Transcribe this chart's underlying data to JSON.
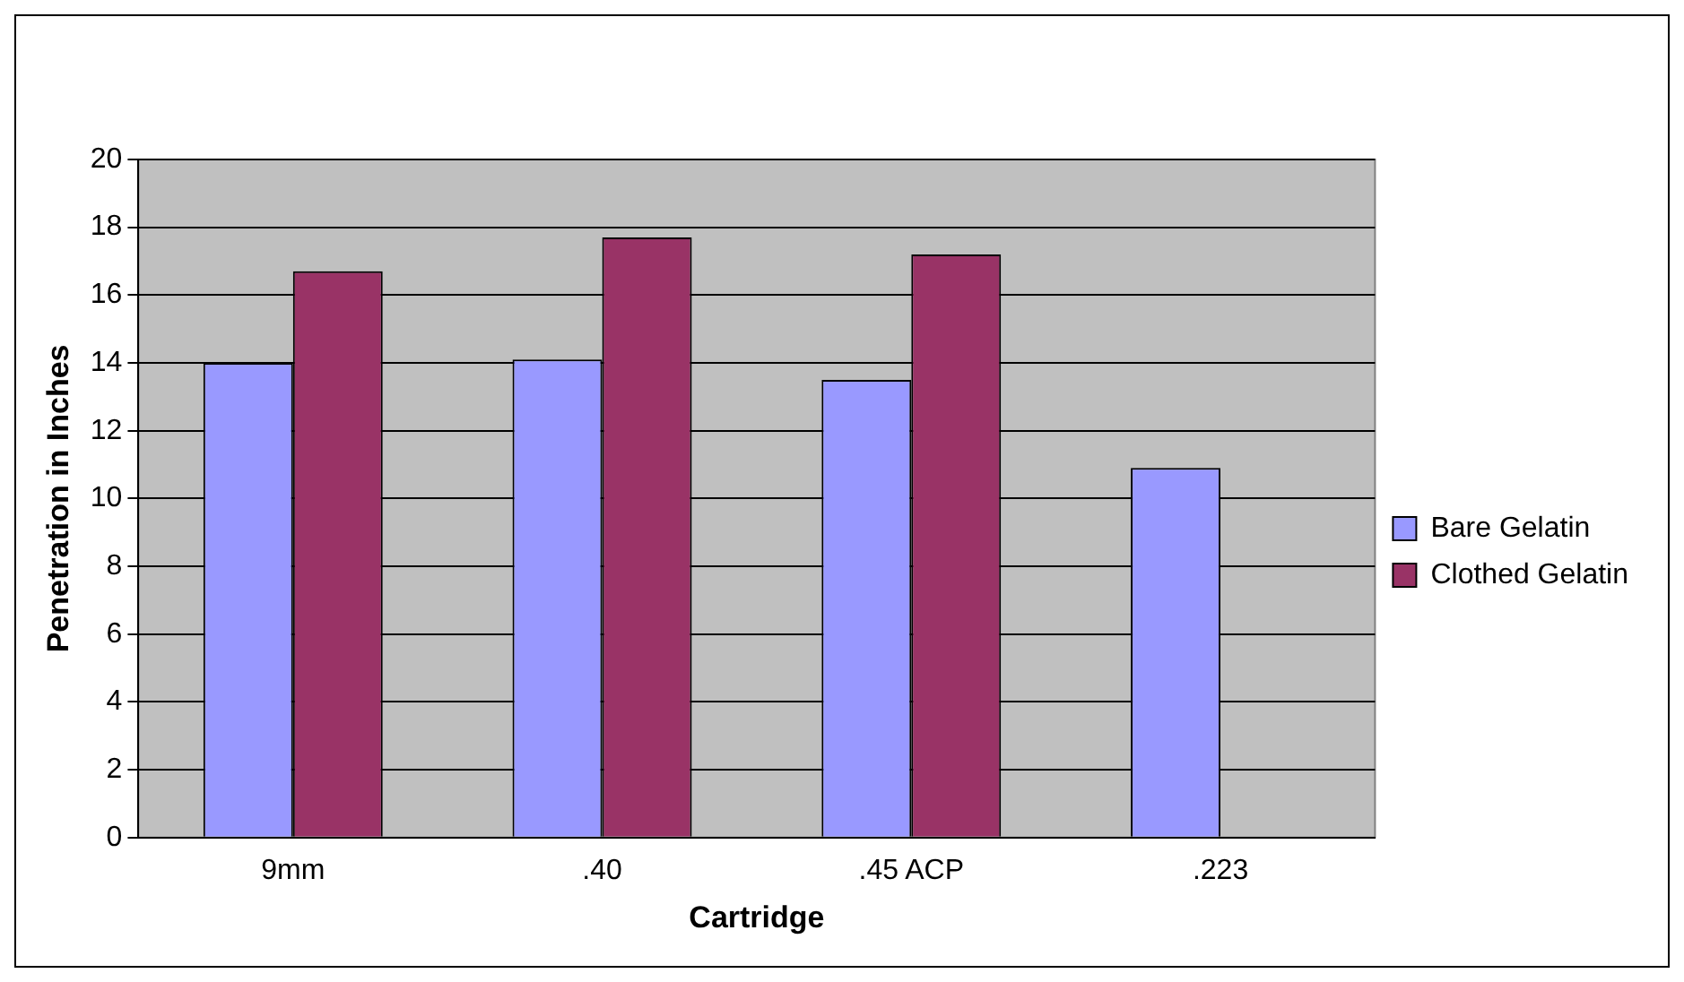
{
  "chart_data": {
    "type": "bar",
    "xlabel": "Cartridge",
    "ylabel": "Penetration in Inches",
    "categories": [
      "9mm",
      ".40",
      ".45 ACP",
      ".223"
    ],
    "series": [
      {
        "name": "Bare Gelatin",
        "color": "#9999ff",
        "values": [
          14.0,
          14.1,
          13.5,
          10.9
        ]
      },
      {
        "name": "Clothed Gelatin",
        "color": "#993366",
        "values": [
          16.7,
          17.7,
          17.2,
          null
        ]
      }
    ],
    "ylim": [
      0,
      20
    ],
    "yticks": [
      0,
      2,
      4,
      6,
      8,
      10,
      12,
      14,
      16,
      18,
      20
    ],
    "grid": "y",
    "legend": "right"
  }
}
